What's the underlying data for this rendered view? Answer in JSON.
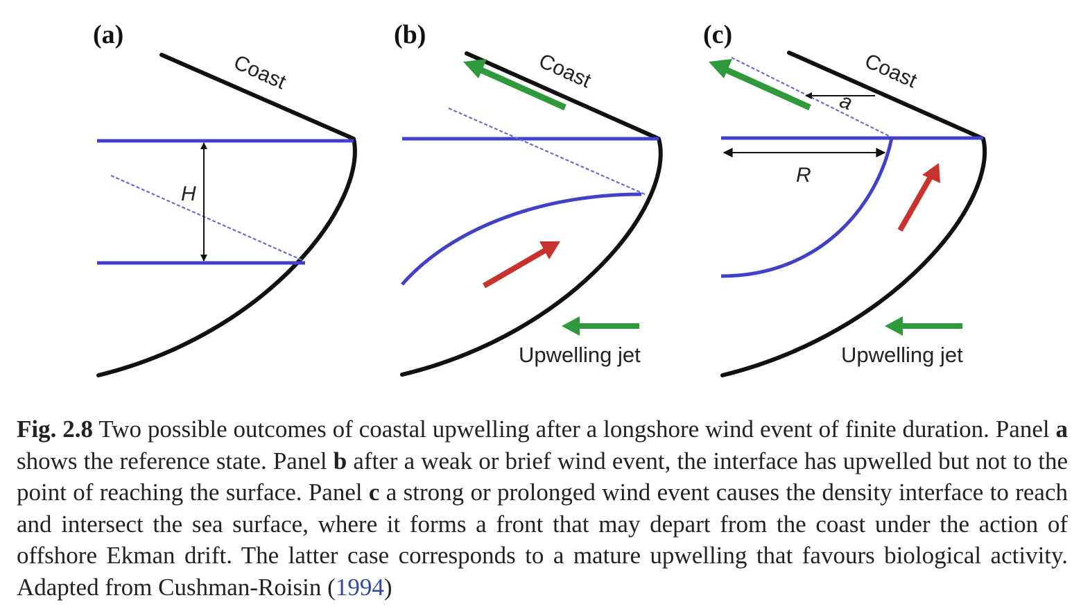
{
  "colors": {
    "coast": "#111111",
    "interface": "#4040c8",
    "wind_arrow": "#2e9a3c",
    "upwelling_arrow": "#c8322e",
    "citation_link": "#2b4aa8"
  },
  "panels": [
    {
      "label": "(a)",
      "coast_label": "Coast",
      "dimension_label": "H"
    },
    {
      "label": "(b)",
      "coast_label": "Coast",
      "jet_label": "Upwelling jet"
    },
    {
      "label": "(c)",
      "coast_label": "Coast",
      "dimension_labels": [
        "a",
        "R"
      ],
      "jet_label": "Upwelling jet"
    }
  ],
  "caption": {
    "fig_num": "Fig. 2.8",
    "part1": " Two possible outcomes of coastal upwelling after a longshore wind event of finite duration. Panel ",
    "ref_a": "a",
    "part2": " shows the reference state. Panel ",
    "ref_b": "b",
    "part3": " after a weak or brief wind event, the interface has upwelled but not to the point of reaching the surface. Panel ",
    "ref_c": "c",
    "part4": " a strong or prolonged wind event causes the density interface to reach and intersect the sea surface, where it forms a front that may depart from the coast under the action of offshore Ekman drift. The latter case corresponds to a mature upwelling that favours biological activity. Adapted from Cushman-Roisin (",
    "cite_year": "1994",
    "part5": ")"
  }
}
